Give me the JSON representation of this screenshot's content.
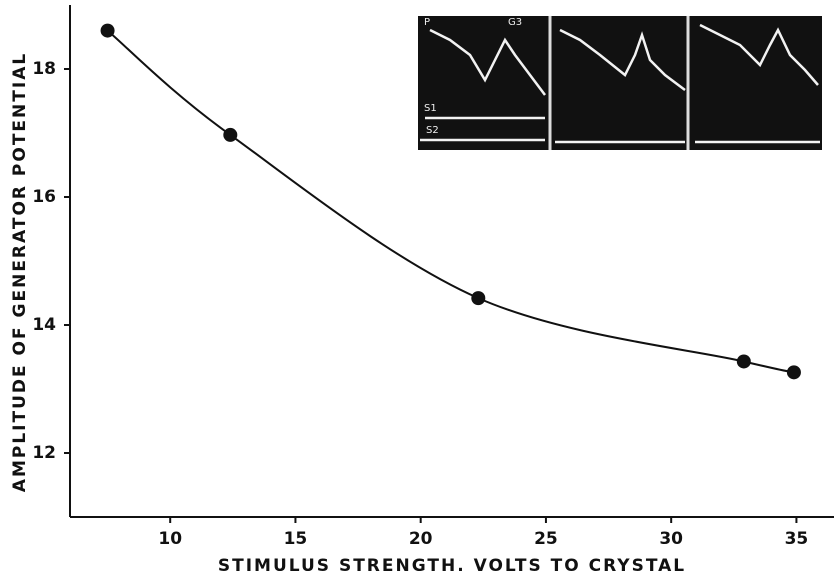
{
  "chart_data": {
    "type": "line",
    "x_label": "STIMULUS STRENGTH. VOLTS TO CRYSTAL",
    "y_label": "AMPLITUDE OF GENERATOR POTENTIAL",
    "annotations": [
      "P",
      "G3",
      "S1",
      "S2"
    ],
    "x": [
      7.5,
      12.4,
      22.3,
      32.9,
      34.9
    ],
    "series": [
      {
        "color": "#111111",
        "values": [
          18.6,
          16.97,
          14.42,
          13.43,
          13.26
        ]
      }
    ],
    "xlim": [
      6,
      36.5
    ],
    "xticks": [
      10,
      15,
      20,
      25,
      30,
      35
    ],
    "ylim": [
      11,
      19
    ],
    "yticks": [
      12,
      14,
      16,
      18
    ],
    "grid": false
  }
}
